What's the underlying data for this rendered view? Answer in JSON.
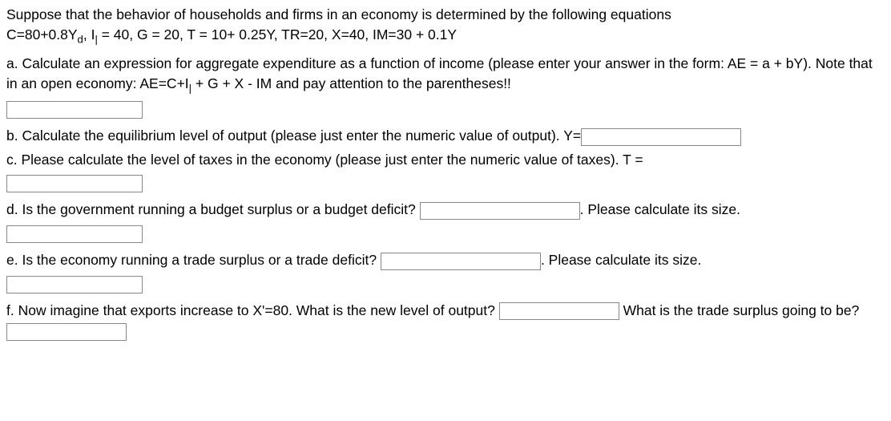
{
  "intro": {
    "line1_a": "Suppose that the behavior of households and firms in an economy is determined by the following equations",
    "line2_pre": "C=80+0.8Y",
    "line2_sub1": "d",
    "line2_mid": ", I",
    "line2_sub2": "|",
    "line2_rest": " = 40, G = 20, T = 10+ 0.25Y, TR=20, X=40, IM=30 + 0.1Y"
  },
  "a": {
    "text1": "a. Calculate an expression for aggregate expenditure as a function of income (please enter your answer in the form: AE = a + bY). Note that in an open economy: AE=C+I",
    "sub": "|",
    "text2": " + G + X  - IM and pay attention to the parentheses!!"
  },
  "b": {
    "text": "b. Calculate the equilibrium level of output (please just enter the numeric value of output). Y="
  },
  "c": {
    "text": "c. Please calculate the level of taxes in the economy (please just enter the numeric value of taxes). T ="
  },
  "d": {
    "text1": "d. Is the government running a budget surplus or a budget deficit? ",
    "text2": ". Please calculate its size."
  },
  "e": {
    "text1": "e. Is the economy running a trade surplus or a trade deficit? ",
    "text2": ". Please calculate its size."
  },
  "f": {
    "text1": "f. Now imagine that exports increase to X'=80.  What is the new level of output? ",
    "text2": " What is the trade surplus going to be? "
  }
}
